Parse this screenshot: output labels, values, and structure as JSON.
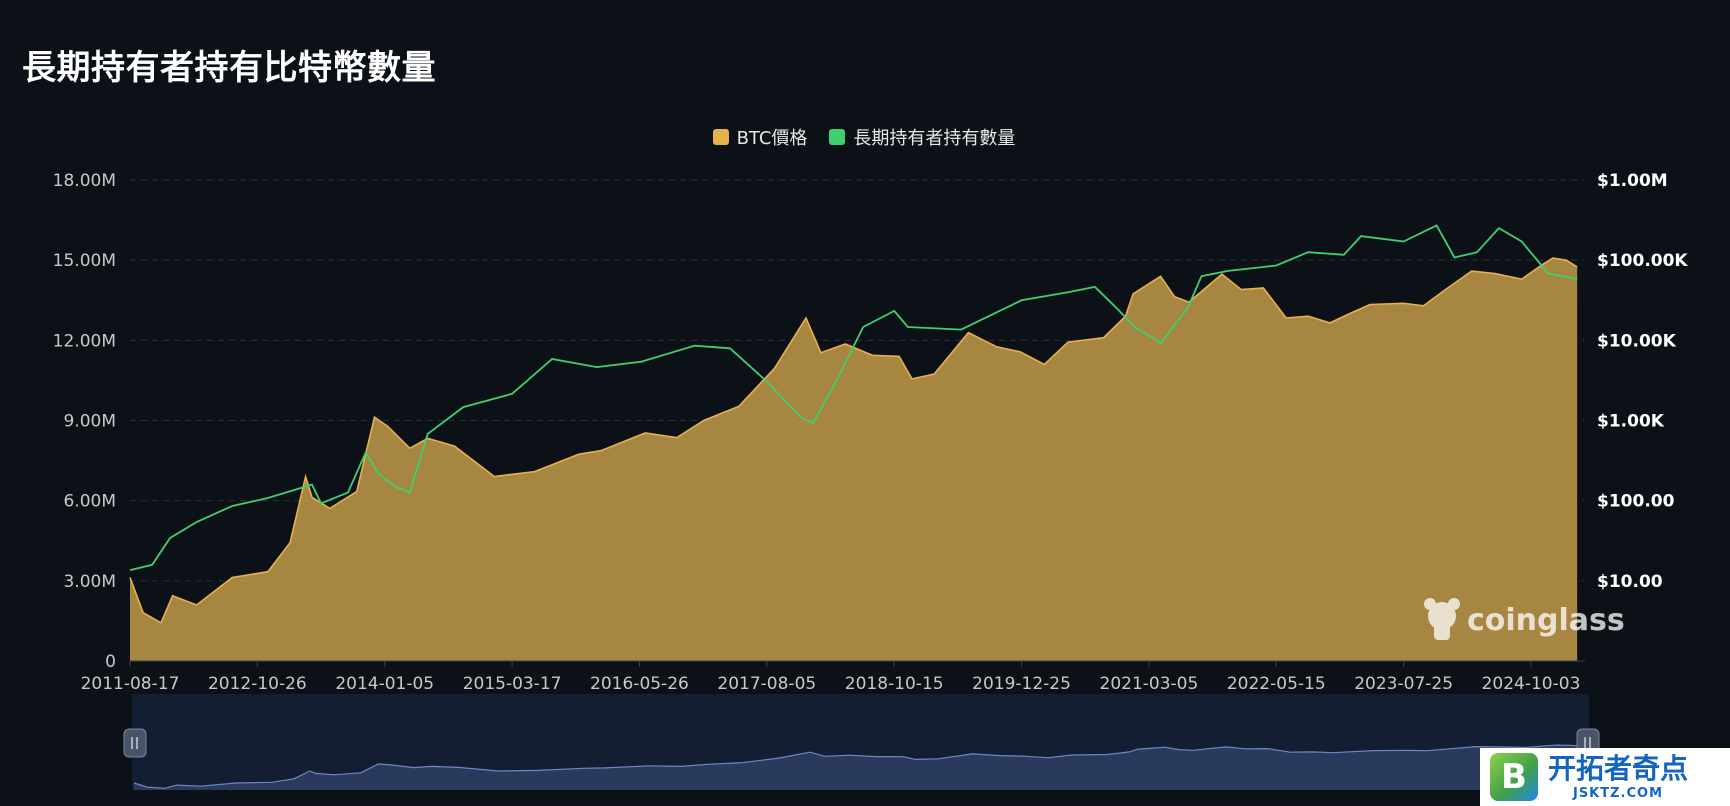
{
  "title": "長期持有者持有比特幣數量",
  "legend": [
    {
      "label": "BTC價格",
      "color": "#e8b04a"
    },
    {
      "label": "長期持有者持有數量",
      "color": "#3ecf6e"
    }
  ],
  "watermark": "coinglass",
  "site_badge": {
    "cn": "开拓者奇点",
    "en": "JSKTZ.COM",
    "logo_letter": "B"
  },
  "colors": {
    "background": "#0c1117",
    "price_fill": "#c9a04a",
    "price_line": "#e8b04a",
    "holder_line": "#3ecf6e",
    "grid": "#2a3038",
    "navigator_bg": "#141e33",
    "navigator_fill": "#2a3a5c",
    "navigator_line": "#6f86c4",
    "axis_text": "#c8c8c8"
  },
  "chart_data": {
    "type": "area",
    "title": "長期持有者持有比特幣數量",
    "x_tick_labels": [
      "2011-08-17",
      "2012-10-26",
      "2014-01-05",
      "2015-03-17",
      "2016-05-26",
      "2017-08-05",
      "2018-10-15",
      "2019-12-25",
      "2021-03-05",
      "2022-05-15",
      "2023-07-25",
      "2024-10-03"
    ],
    "y_left": {
      "label": "",
      "ticks": [
        "0",
        "3.00M",
        "6.00M",
        "9.00M",
        "12.00M",
        "15.00M",
        "18.00M"
      ],
      "range": [
        0,
        18000000
      ]
    },
    "y_right": {
      "label": "",
      "scale": "log",
      "ticks": [
        "$10.00",
        "$100.00",
        "$1.00K",
        "$10.00K",
        "$100.00K",
        "$1.00M"
      ],
      "range": [
        1,
        1000000
      ]
    },
    "grid": true,
    "legend_position": "top-center",
    "series": [
      {
        "name": "BTC價格",
        "axis": "right",
        "render": "area",
        "points": [
          [
            "2011-08-17",
            11
          ],
          [
            "2011-10-01",
            4
          ],
          [
            "2011-12-01",
            3
          ],
          [
            "2012-01-10",
            6.5
          ],
          [
            "2012-04-01",
            5
          ],
          [
            "2012-08-01",
            11
          ],
          [
            "2012-12-01",
            13
          ],
          [
            "2013-02-15",
            30
          ],
          [
            "2013-04-09",
            200
          ],
          [
            "2013-05-01",
            110
          ],
          [
            "2013-07-01",
            80
          ],
          [
            "2013-10-01",
            130
          ],
          [
            "2013-12-01",
            1100
          ],
          [
            "2014-01-15",
            850
          ],
          [
            "2014-04-01",
            450
          ],
          [
            "2014-06-01",
            600
          ],
          [
            "2014-09-01",
            480
          ],
          [
            "2015-01-15",
            200
          ],
          [
            "2015-06-01",
            230
          ],
          [
            "2015-11-01",
            380
          ],
          [
            "2016-01-15",
            420
          ],
          [
            "2016-06-15",
            700
          ],
          [
            "2016-10-01",
            610
          ],
          [
            "2017-01-01",
            1000
          ],
          [
            "2017-05-01",
            1500
          ],
          [
            "2017-09-01",
            4500
          ],
          [
            "2017-12-17",
            19000
          ],
          [
            "2018-02-06",
            7000
          ],
          [
            "2018-05-01",
            9000
          ],
          [
            "2018-08-01",
            6500
          ],
          [
            "2018-11-01",
            6300
          ],
          [
            "2018-12-15",
            3300
          ],
          [
            "2019-03-01",
            3800
          ],
          [
            "2019-06-26",
            12500
          ],
          [
            "2019-10-01",
            8300
          ],
          [
            "2019-12-20",
            7200
          ],
          [
            "2020-03-12",
            5000
          ],
          [
            "2020-06-01",
            9500
          ],
          [
            "2020-10-01",
            10800
          ],
          [
            "2020-12-15",
            20000
          ],
          [
            "2021-01-10",
            38000
          ],
          [
            "2021-04-14",
            63000
          ],
          [
            "2021-06-01",
            35000
          ],
          [
            "2021-07-20",
            30000
          ],
          [
            "2021-11-10",
            67000
          ],
          [
            "2022-01-15",
            43000
          ],
          [
            "2022-04-01",
            45000
          ],
          [
            "2022-06-18",
            19000
          ],
          [
            "2022-09-01",
            20000
          ],
          [
            "2022-11-15",
            16500
          ],
          [
            "2023-01-15",
            21000
          ],
          [
            "2023-04-01",
            28000
          ],
          [
            "2023-07-25",
            29000
          ],
          [
            "2023-10-01",
            27000
          ],
          [
            "2023-12-15",
            43000
          ],
          [
            "2024-03-14",
            73000
          ],
          [
            "2024-06-01",
            68000
          ],
          [
            "2024-09-01",
            58000
          ],
          [
            "2024-11-15",
            90000
          ],
          [
            "2024-12-17",
            106000
          ],
          [
            "2025-02-01",
            100000
          ],
          [
            "2025-03-10",
            82000
          ]
        ]
      },
      {
        "name": "長期持有者持有數量",
        "axis": "left",
        "render": "line",
        "points": [
          [
            "2011-08-17",
            3400000
          ],
          [
            "2011-11-01",
            3600000
          ],
          [
            "2012-01-01",
            4600000
          ],
          [
            "2012-04-01",
            5200000
          ],
          [
            "2012-08-01",
            5800000
          ],
          [
            "2012-12-01",
            6100000
          ],
          [
            "2013-03-01",
            6400000
          ],
          [
            "2013-05-01",
            6600000
          ],
          [
            "2013-06-01",
            5900000
          ],
          [
            "2013-09-01",
            6300000
          ],
          [
            "2013-11-01",
            7800000
          ],
          [
            "2013-12-15",
            7000000
          ],
          [
            "2014-02-15",
            6500000
          ],
          [
            "2014-04-01",
            6300000
          ],
          [
            "2014-06-01",
            8500000
          ],
          [
            "2014-10-01",
            9500000
          ],
          [
            "2015-03-17",
            10000000
          ],
          [
            "2015-08-01",
            11300000
          ],
          [
            "2016-01-01",
            11000000
          ],
          [
            "2016-06-01",
            11200000
          ],
          [
            "2016-12-01",
            11800000
          ],
          [
            "2017-04-01",
            11700000
          ],
          [
            "2017-08-01",
            10500000
          ],
          [
            "2017-12-01",
            9100000
          ],
          [
            "2018-01-10",
            8900000
          ],
          [
            "2018-04-01",
            10500000
          ],
          [
            "2018-07-01",
            12500000
          ],
          [
            "2018-10-15",
            13100000
          ],
          [
            "2018-12-01",
            12500000
          ],
          [
            "2019-06-01",
            12400000
          ],
          [
            "2019-12-25",
            13500000
          ],
          [
            "2020-06-01",
            13800000
          ],
          [
            "2020-09-01",
            14000000
          ],
          [
            "2020-11-15",
            13200000
          ],
          [
            "2021-01-15",
            12500000
          ],
          [
            "2021-04-15",
            11900000
          ],
          [
            "2021-07-15",
            13200000
          ],
          [
            "2021-09-01",
            14400000
          ],
          [
            "2021-12-01",
            14600000
          ],
          [
            "2022-05-15",
            14800000
          ],
          [
            "2022-09-01",
            15300000
          ],
          [
            "2023-01-01",
            15200000
          ],
          [
            "2023-03-01",
            15900000
          ],
          [
            "2023-07-25",
            15700000
          ],
          [
            "2023-11-15",
            16300000
          ],
          [
            "2024-01-15",
            15100000
          ],
          [
            "2024-04-01",
            15300000
          ],
          [
            "2024-06-15",
            16200000
          ],
          [
            "2024-09-01",
            15700000
          ],
          [
            "2024-12-01",
            14500000
          ],
          [
            "2025-03-10",
            14300000
          ]
        ]
      }
    ]
  }
}
